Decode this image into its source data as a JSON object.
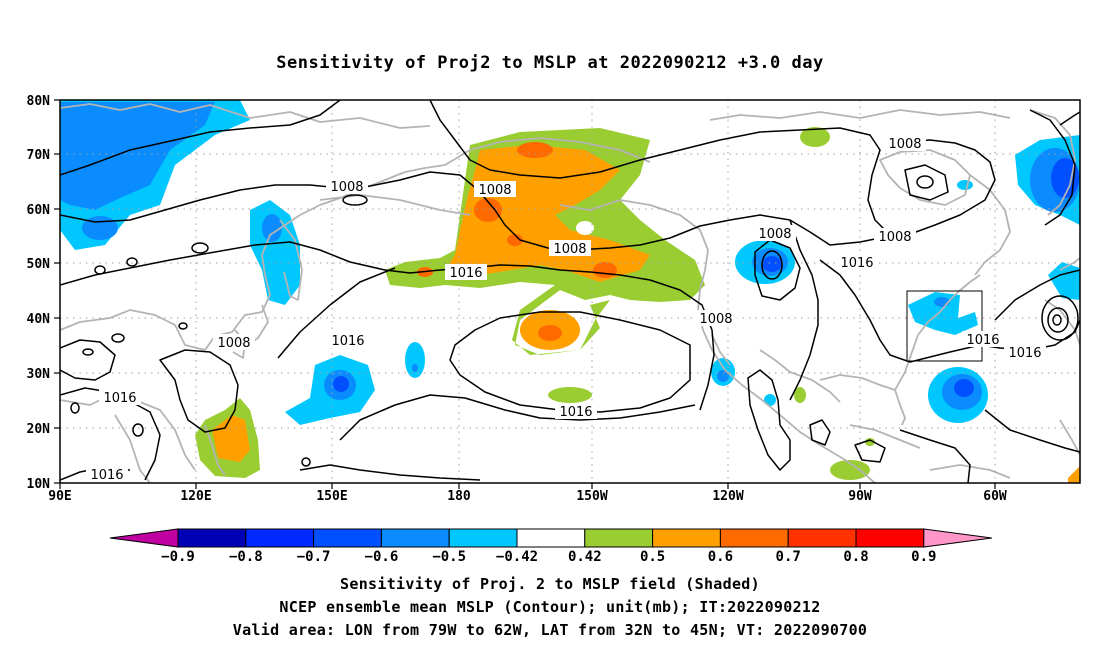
{
  "title": "Sensitivity of Proj2 to MSLP at 2022090212 +3.0 day",
  "map": {
    "lat_labels": [
      "80N",
      "70N",
      "60N",
      "50N",
      "40N",
      "30N",
      "20N",
      "10N"
    ],
    "lon_labels": [
      "90E",
      "120E",
      "150E",
      "180",
      "150W",
      "120W",
      "90W",
      "60W"
    ],
    "contour_labels": [
      {
        "text": "1008"
      },
      {
        "text": "1008"
      },
      {
        "text": "1008"
      },
      {
        "text": "1008"
      },
      {
        "text": "1008"
      },
      {
        "text": "1008"
      },
      {
        "text": "1008"
      },
      {
        "text": "1008"
      },
      {
        "text": "1016"
      },
      {
        "text": "1016"
      },
      {
        "text": "1016"
      },
      {
        "text": "1016"
      },
      {
        "text": "1016"
      },
      {
        "text": "1016"
      },
      {
        "text": "1016"
      }
    ],
    "colors": {
      "land_outline": "#b4b4b4",
      "grid": "#a0a0a0",
      "contour": "#000000"
    }
  },
  "colorbar": {
    "labels": [
      "−0.9",
      "−0.8",
      "−0.7",
      "−0.6",
      "−0.5",
      "−0.42",
      "0.42",
      "0.5",
      "0.6",
      "0.7",
      "0.8",
      "0.9"
    ],
    "colors": [
      "#c000a0",
      "#0000b4",
      "#0028ff",
      "#0050ff",
      "#0a8cff",
      "#00c8ff",
      "#ffffff",
      "#9acd32",
      "#ffa000",
      "#ff6a00",
      "#ff3200",
      "#ff0000",
      "#ff96c8"
    ]
  },
  "caption": {
    "line1": "Sensitivity of Proj. 2 to MSLP field (Shaded)",
    "line2": "NCEP ensemble mean MSLP (Contour); unit(mb); IT:2022090212",
    "line3": "Valid area: LON from 79W to 62W, LAT from 32N to 45N; VT: 2022090700"
  }
}
